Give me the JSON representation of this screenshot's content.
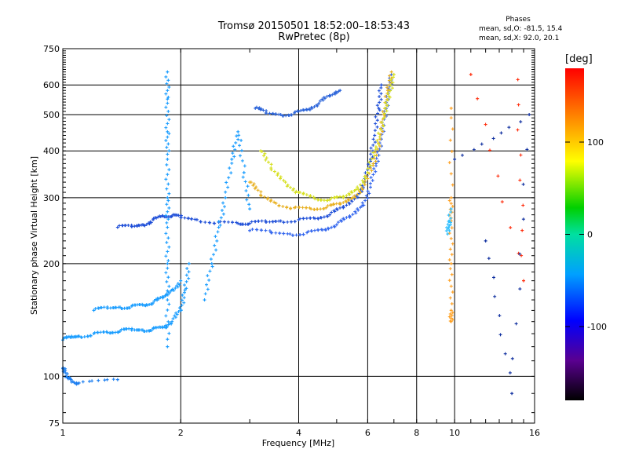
{
  "header": {
    "title": "Tromsø 20150501 18:52:00–18:53:43",
    "subtitle": "RwPretec (8p)",
    "stats_heading": "Phases",
    "stats_o": "mean, sd,O:  -81.5,  15.4",
    "stats_x": "mean, sd,X:   92.0,  20.1"
  },
  "chart_data": {
    "type": "scatter",
    "title": "Tromsø 20150501 18:52:00–18:53:43",
    "subtitle": "RwPretec (8p)",
    "xlabel": "Frequency [MHz]",
    "ylabel": "Stationary phase Virtual Height [km]",
    "x_scale": "log",
    "y_scale": "log",
    "xlim": [
      1,
      16
    ],
    "ylim": [
      75,
      750
    ],
    "x_ticks": [
      1,
      2,
      4,
      6,
      8,
      10,
      16
    ],
    "x_ticklabels": [
      "1",
      "2",
      "4",
      "6",
      "8",
      "10",
      "16"
    ],
    "y_ticks": [
      75,
      100,
      200,
      300,
      400,
      500,
      600,
      750
    ],
    "y_ticklabels": [
      "75",
      "100",
      "200",
      "300",
      "400",
      "500",
      "600",
      "750"
    ],
    "grid": true,
    "colorbar": {
      "label": "[deg]",
      "range": [
        -180,
        180
      ],
      "ticks": [
        -100,
        0,
        100
      ],
      "ticklabels": [
        "-100",
        "0",
        "100"
      ]
    },
    "series": [
      {
        "color": "#1f4fd8",
        "points": [
          [
            1.38,
            250
          ],
          [
            1.5,
            251
          ],
          [
            1.6,
            254
          ],
          [
            1.7,
            262
          ],
          [
            1.8,
            268
          ],
          [
            1.9,
            268
          ],
          [
            2.0,
            266
          ],
          [
            2.2,
            262
          ],
          [
            2.5,
            258
          ],
          [
            2.8,
            256
          ],
          [
            3.0,
            256
          ],
          [
            3.3,
            258
          ],
          [
            3.6,
            260
          ],
          [
            4.0,
            262
          ],
          [
            4.4,
            264
          ],
          [
            4.8,
            270
          ],
          [
            5.2,
            282
          ],
          [
            5.6,
            300
          ],
          [
            5.9,
            330
          ],
          [
            6.1,
            380
          ],
          [
            6.25,
            440
          ],
          [
            6.4,
            520
          ],
          [
            6.5,
            600
          ]
        ]
      },
      {
        "color": "#3366ee",
        "points": [
          [
            3.0,
            245
          ],
          [
            3.4,
            242
          ],
          [
            3.8,
            240
          ],
          [
            4.2,
            242
          ],
          [
            4.6,
            246
          ],
          [
            5.0,
            254
          ],
          [
            5.4,
            266
          ],
          [
            5.8,
            285
          ],
          [
            6.1,
            320
          ],
          [
            6.3,
            370
          ],
          [
            6.5,
            430
          ],
          [
            6.65,
            500
          ],
          [
            6.8,
            580
          ],
          [
            6.9,
            640
          ]
        ]
      },
      {
        "color": "#e8b020",
        "points": [
          [
            3.0,
            330
          ],
          [
            3.2,
            305
          ],
          [
            3.5,
            290
          ],
          [
            3.9,
            282
          ],
          [
            4.3,
            280
          ],
          [
            4.7,
            282
          ],
          [
            5.1,
            288
          ],
          [
            5.5,
            300
          ],
          [
            5.9,
            325
          ],
          [
            6.2,
            370
          ],
          [
            6.45,
            430
          ],
          [
            6.6,
            500
          ],
          [
            6.75,
            580
          ],
          [
            6.9,
            650
          ]
        ]
      },
      {
        "color": "#d6e020",
        "points": [
          [
            3.2,
            400
          ],
          [
            3.4,
            360
          ],
          [
            3.7,
            330
          ],
          [
            4.0,
            310
          ],
          [
            4.4,
            298
          ],
          [
            4.8,
            296
          ],
          [
            5.2,
            300
          ],
          [
            5.6,
            315
          ],
          [
            6.0,
            350
          ],
          [
            6.3,
            410
          ],
          [
            6.6,
            490
          ],
          [
            6.8,
            560
          ],
          [
            7.0,
            640
          ]
        ]
      },
      {
        "color": "#2a63d9",
        "points": [
          [
            3.1,
            520
          ],
          [
            3.3,
            505
          ],
          [
            3.6,
            500
          ],
          [
            3.9,
            505
          ],
          [
            4.2,
            515
          ],
          [
            4.5,
            535
          ],
          [
            4.8,
            560
          ],
          [
            5.1,
            580
          ]
        ]
      },
      {
        "color": "#1a9dff",
        "points": [
          [
            1.85,
            120
          ],
          [
            1.85,
            160
          ],
          [
            1.85,
            200
          ],
          [
            1.85,
            250
          ],
          [
            1.85,
            300
          ],
          [
            1.85,
            380
          ],
          [
            1.85,
            450
          ],
          [
            1.85,
            550
          ],
          [
            1.85,
            650
          ]
        ]
      },
      {
        "color": "#1a9dff",
        "points": [
          [
            1.0,
            125
          ],
          [
            1.05,
            127
          ],
          [
            1.1,
            128
          ],
          [
            1.2,
            130
          ],
          [
            1.3,
            131
          ],
          [
            1.4,
            132
          ],
          [
            1.5,
            133
          ],
          [
            1.6,
            133
          ],
          [
            1.7,
            134
          ],
          [
            1.8,
            135
          ],
          [
            1.9,
            140
          ],
          [
            2.0,
            150
          ],
          [
            2.05,
            170
          ],
          [
            2.1,
            200
          ]
        ]
      },
      {
        "color": "#1a9dff",
        "points": [
          [
            1.2,
            150
          ],
          [
            1.3,
            152
          ],
          [
            1.4,
            153
          ],
          [
            1.5,
            154
          ],
          [
            1.6,
            155
          ],
          [
            1.7,
            157
          ],
          [
            1.8,
            162
          ],
          [
            1.9,
            170
          ],
          [
            2.0,
            180
          ]
        ]
      },
      {
        "color": "#1a9dff",
        "points": [
          [
            2.3,
            160
          ],
          [
            2.4,
            200
          ],
          [
            2.5,
            250
          ],
          [
            2.6,
            300
          ],
          [
            2.7,
            380
          ],
          [
            2.8,
            450
          ],
          [
            2.9,
            350
          ],
          [
            3.0,
            280
          ]
        ]
      },
      {
        "color": "#1a7df0",
        "points": [
          [
            1.0,
            105
          ],
          [
            1.02,
            100
          ],
          [
            1.05,
            98
          ],
          [
            1.1,
            96
          ],
          [
            1.38,
            98
          ]
        ]
      },
      {
        "color": "#ffa020",
        "points": [
          [
            9.8,
            520
          ],
          [
            9.8,
            300
          ],
          [
            9.8,
            260
          ],
          [
            9.8,
            200
          ],
          [
            9.8,
            150
          ],
          [
            9.8,
            140
          ]
        ]
      },
      {
        "color": "#30c0ff",
        "points": [
          [
            9.7,
            260
          ],
          [
            9.6,
            240
          ],
          [
            9.8,
            280
          ]
        ]
      },
      {
        "color": "#ff3010",
        "points": [
          [
            11.0,
            640
          ],
          [
            15.0,
            180
          ],
          [
            14.5,
            620
          ]
        ]
      },
      {
        "color": "#1030a0",
        "points": [
          [
            12.0,
            230
          ],
          [
            14.0,
            90
          ],
          [
            15.5,
            500
          ],
          [
            10.0,
            380
          ]
        ]
      }
    ]
  }
}
